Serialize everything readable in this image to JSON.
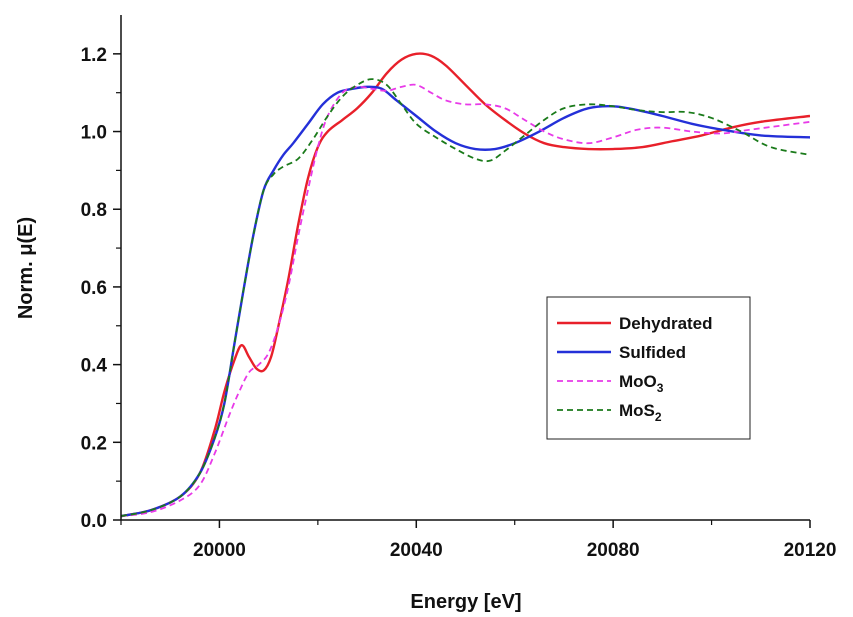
{
  "chart_data": {
    "type": "line",
    "title": "",
    "xlabel": "Energy [eV]",
    "ylabel": "Norm. μ(E)",
    "xlim": [
      19980,
      20120
    ],
    "ylim": [
      0,
      1.3
    ],
    "x_ticks": [
      20000,
      20040,
      20080,
      20120
    ],
    "x_tick_labels": [
      "20000",
      "20040",
      "20080",
      "20120"
    ],
    "y_ticks": [
      0.0,
      0.2,
      0.4,
      0.6,
      0.8,
      1.0,
      1.2
    ],
    "y_tick_labels": [
      "0.0",
      "0.2",
      "0.4",
      "0.6",
      "0.8",
      "1.0",
      "1.2"
    ],
    "grid": false,
    "legend_position": "center-right",
    "series": [
      {
        "name": "Dehydrated",
        "legend_main": "Dehydrated",
        "legend_sub": "",
        "color": "#e8202a",
        "dash": "solid",
        "points": [
          [
            19980,
            0.01
          ],
          [
            19986,
            0.025
          ],
          [
            19992,
            0.06
          ],
          [
            19996,
            0.12
          ],
          [
            19999,
            0.23
          ],
          [
            20001,
            0.33
          ],
          [
            20003,
            0.41
          ],
          [
            20004.5,
            0.45
          ],
          [
            20006,
            0.42
          ],
          [
            20007.5,
            0.39
          ],
          [
            20009,
            0.385
          ],
          [
            20010.5,
            0.42
          ],
          [
            20012,
            0.5
          ],
          [
            20014,
            0.62
          ],
          [
            20016,
            0.76
          ],
          [
            20018,
            0.88
          ],
          [
            20020,
            0.96
          ],
          [
            20022,
            1.0
          ],
          [
            20025,
            1.03
          ],
          [
            20028,
            1.06
          ],
          [
            20031,
            1.1
          ],
          [
            20034,
            1.15
          ],
          [
            20037,
            1.185
          ],
          [
            20040,
            1.2
          ],
          [
            20043,
            1.195
          ],
          [
            20046,
            1.17
          ],
          [
            20050,
            1.12
          ],
          [
            20054,
            1.07
          ],
          [
            20058,
            1.03
          ],
          [
            20062,
            0.995
          ],
          [
            20066,
            0.97
          ],
          [
            20070,
            0.96
          ],
          [
            20075,
            0.955
          ],
          [
            20080,
            0.955
          ],
          [
            20086,
            0.96
          ],
          [
            20092,
            0.975
          ],
          [
            20098,
            0.99
          ],
          [
            20104,
            1.01
          ],
          [
            20110,
            1.025
          ],
          [
            20120,
            1.04
          ]
        ]
      },
      {
        "name": "Sulfided",
        "legend_main": "Sulfided",
        "legend_sub": "",
        "color": "#2430d8",
        "dash": "solid",
        "points": [
          [
            19980,
            0.01
          ],
          [
            19986,
            0.025
          ],
          [
            19992,
            0.06
          ],
          [
            19996,
            0.12
          ],
          [
            19999,
            0.21
          ],
          [
            20001,
            0.3
          ],
          [
            20003,
            0.45
          ],
          [
            20005,
            0.6
          ],
          [
            20007,
            0.74
          ],
          [
            20009,
            0.85
          ],
          [
            20011,
            0.9
          ],
          [
            20013,
            0.94
          ],
          [
            20015,
            0.97
          ],
          [
            20018,
            1.02
          ],
          [
            20021,
            1.07
          ],
          [
            20024,
            1.1
          ],
          [
            20027,
            1.11
          ],
          [
            20030,
            1.115
          ],
          [
            20033,
            1.11
          ],
          [
            20036,
            1.08
          ],
          [
            20040,
            1.04
          ],
          [
            20044,
            1.0
          ],
          [
            20048,
            0.97
          ],
          [
            20052,
            0.955
          ],
          [
            20056,
            0.955
          ],
          [
            20060,
            0.97
          ],
          [
            20065,
            1.0
          ],
          [
            20070,
            1.035
          ],
          [
            20075,
            1.06
          ],
          [
            20080,
            1.065
          ],
          [
            20085,
            1.055
          ],
          [
            20090,
            1.04
          ],
          [
            20096,
            1.02
          ],
          [
            20102,
            1.005
          ],
          [
            20110,
            0.99
          ],
          [
            20120,
            0.985
          ]
        ]
      },
      {
        "name": "MoO3",
        "legend_main": "MoO",
        "legend_sub": "3",
        "color": "#e83ae8",
        "dash": "dashed",
        "points": [
          [
            19980,
            0.01
          ],
          [
            19986,
            0.02
          ],
          [
            19992,
            0.05
          ],
          [
            19996,
            0.09
          ],
          [
            19999,
            0.17
          ],
          [
            20002,
            0.27
          ],
          [
            20004,
            0.33
          ],
          [
            20006,
            0.38
          ],
          [
            20008,
            0.4
          ],
          [
            20010,
            0.43
          ],
          [
            20012,
            0.5
          ],
          [
            20014,
            0.6
          ],
          [
            20016,
            0.73
          ],
          [
            20018,
            0.85
          ],
          [
            20020,
            0.96
          ],
          [
            20022,
            1.04
          ],
          [
            20025,
            1.1
          ],
          [
            20028,
            1.115
          ],
          [
            20031,
            1.11
          ],
          [
            20034,
            1.105
          ],
          [
            20037,
            1.115
          ],
          [
            20040,
            1.12
          ],
          [
            20043,
            1.1
          ],
          [
            20046,
            1.08
          ],
          [
            20050,
            1.07
          ],
          [
            20054,
            1.07
          ],
          [
            20058,
            1.06
          ],
          [
            20062,
            1.03
          ],
          [
            20066,
            1.0
          ],
          [
            20070,
            0.98
          ],
          [
            20075,
            0.97
          ],
          [
            20080,
            0.985
          ],
          [
            20085,
            1.005
          ],
          [
            20090,
            1.01
          ],
          [
            20096,
            1.0
          ],
          [
            20102,
            0.995
          ],
          [
            20108,
            1.005
          ],
          [
            20114,
            1.015
          ],
          [
            20120,
            1.025
          ]
        ]
      },
      {
        "name": "MoS2",
        "legend_main": "MoS",
        "legend_sub": "2",
        "color": "#1a7a1a",
        "dash": "dashed",
        "points": [
          [
            19980,
            0.01
          ],
          [
            19986,
            0.025
          ],
          [
            19992,
            0.06
          ],
          [
            19996,
            0.12
          ],
          [
            19999,
            0.21
          ],
          [
            20001,
            0.3
          ],
          [
            20003,
            0.45
          ],
          [
            20005,
            0.6
          ],
          [
            20007,
            0.74
          ],
          [
            20009,
            0.85
          ],
          [
            20011,
            0.89
          ],
          [
            20013,
            0.91
          ],
          [
            20016,
            0.93
          ],
          [
            20019,
            0.98
          ],
          [
            20022,
            1.04
          ],
          [
            20025,
            1.09
          ],
          [
            20028,
            1.12
          ],
          [
            20031,
            1.135
          ],
          [
            20034,
            1.12
          ],
          [
            20037,
            1.07
          ],
          [
            20040,
            1.02
          ],
          [
            20044,
            0.985
          ],
          [
            20048,
            0.955
          ],
          [
            20052,
            0.93
          ],
          [
            20055,
            0.925
          ],
          [
            20058,
            0.95
          ],
          [
            20062,
            0.99
          ],
          [
            20066,
            1.03
          ],
          [
            20070,
            1.06
          ],
          [
            20075,
            1.07
          ],
          [
            20080,
            1.065
          ],
          [
            20085,
            1.055
          ],
          [
            20090,
            1.05
          ],
          [
            20095,
            1.05
          ],
          [
            20100,
            1.035
          ],
          [
            20106,
            1.0
          ],
          [
            20112,
            0.96
          ],
          [
            20120,
            0.94
          ]
        ]
      }
    ]
  }
}
